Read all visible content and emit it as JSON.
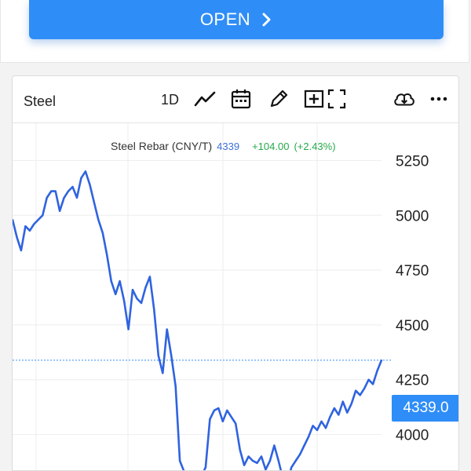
{
  "open_button": {
    "label": "OPEN"
  },
  "toolbar": {
    "symbol": "Steel",
    "interval": "1D",
    "icons": [
      "line-chart-icon",
      "calendar-icon",
      "pencil-icon",
      "add-compare-icon",
      "fullscreen-icon",
      "download-cloud-icon",
      "more-icon"
    ]
  },
  "legend": {
    "name": "Steel Rebar (CNY/T)",
    "last": "4339",
    "change": "+104.00",
    "change_pct": "(+2.43%)"
  },
  "price_tag": "4339.0",
  "colors": {
    "accent": "#2f8df7",
    "line": "#2f63e0",
    "up": "#26a94a"
  },
  "chart_data": {
    "type": "line",
    "title": "Steel Rebar (CNY/T)",
    "xlabel": "",
    "ylabel": "",
    "ylim": [
      3830,
      5420
    ],
    "yticks": [
      4000,
      4250,
      4500,
      4750,
      5000,
      5250
    ],
    "ytick_labels": [
      "4000",
      "4250",
      "4500",
      "4750",
      "5000",
      "5250"
    ],
    "grid": true,
    "last_value": 4339,
    "series": [
      {
        "values": [
          4980,
          4900,
          4840,
          4950,
          4930,
          4960,
          4980,
          5000,
          5080,
          5110,
          5110,
          5020,
          5080,
          5110,
          5130,
          5080,
          5170,
          5200,
          5140,
          5060,
          4980,
          4920,
          4820,
          4700,
          4640,
          4700,
          4610,
          4480,
          4660,
          4620,
          4600,
          4670,
          4720,
          4570,
          4360,
          4280,
          4480,
          4360,
          4220,
          3880,
          3830,
          3800,
          3830,
          3750,
          3810,
          3850,
          4070,
          4110,
          4120,
          4060,
          4110,
          4080,
          4050,
          3930,
          3860,
          3900,
          3880,
          3870,
          3900,
          3840,
          3880,
          3950,
          3880,
          3800,
          3770,
          3850,
          3880,
          3910,
          3950,
          3990,
          4040,
          4020,
          4060,
          4030,
          4080,
          4120,
          4090,
          4150,
          4100,
          4140,
          4200,
          4180,
          4210,
          4250,
          4230,
          4290,
          4339
        ]
      }
    ]
  }
}
